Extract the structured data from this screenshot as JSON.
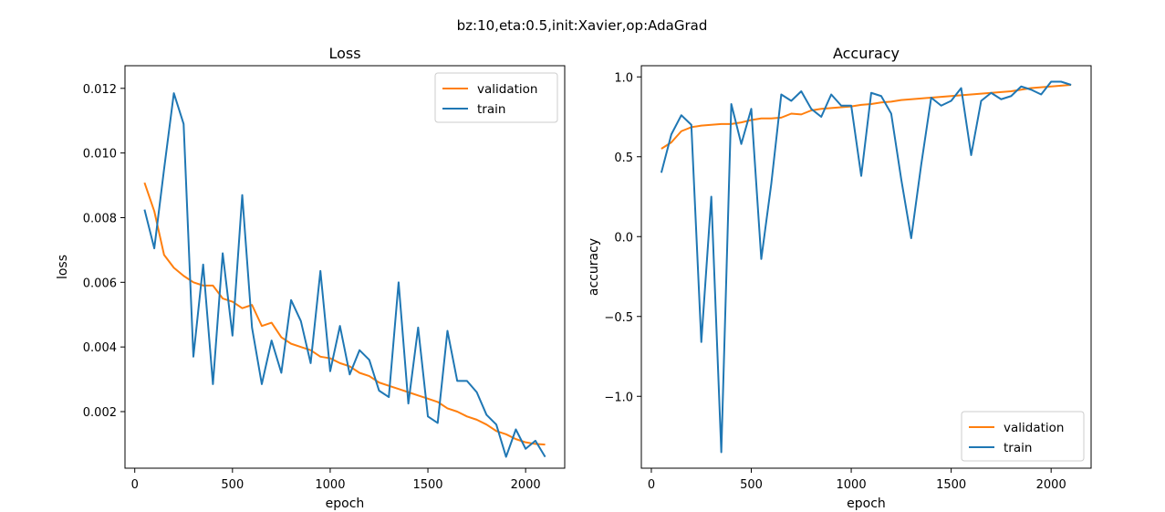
{
  "figure": {
    "suptitle": "bz:10,eta:0.5,init:Xavier,op:AdaGrad"
  },
  "colors": {
    "validation": "#ff7f0e",
    "train": "#1f77b4"
  },
  "chart_data": [
    {
      "type": "line",
      "title": "Loss",
      "xlabel": "epoch",
      "ylabel": "loss",
      "xlim": [
        -50,
        2200
      ],
      "ylim": [
        0.00025,
        0.0127
      ],
      "xticks": [
        0,
        500,
        1000,
        1500,
        2000
      ],
      "xtick_labels": [
        "0",
        "500",
        "1000",
        "1500",
        "2000"
      ],
      "yticks": [
        0.002,
        0.004,
        0.006,
        0.008,
        0.01,
        0.012
      ],
      "ytick_labels": [
        "0.002",
        "0.004",
        "0.006",
        "0.008",
        "0.010",
        "0.012"
      ],
      "legend": {
        "position": "upper right",
        "entries": [
          "validation",
          "train"
        ]
      },
      "grid": false,
      "x": [
        50,
        100,
        150,
        200,
        250,
        300,
        350,
        400,
        450,
        500,
        550,
        600,
        650,
        700,
        750,
        800,
        850,
        900,
        950,
        1000,
        1050,
        1100,
        1150,
        1200,
        1250,
        1300,
        1350,
        1400,
        1450,
        1500,
        1550,
        1600,
        1650,
        1700,
        1750,
        1800,
        1850,
        1900,
        1950,
        2000,
        2050,
        2100
      ],
      "series": [
        {
          "name": "validation",
          "values": [
            0.00908,
            0.0082,
            0.00685,
            0.00645,
            0.0062,
            0.006,
            0.0059,
            0.0059,
            0.0055,
            0.0054,
            0.0052,
            0.0053,
            0.00465,
            0.00475,
            0.0043,
            0.0041,
            0.004,
            0.0039,
            0.0037,
            0.00365,
            0.0035,
            0.0034,
            0.0032,
            0.0031,
            0.0029,
            0.0028,
            0.0027,
            0.0026,
            0.0025,
            0.0024,
            0.0023,
            0.0021,
            0.002,
            0.00185,
            0.00175,
            0.0016,
            0.0014,
            0.0013,
            0.00115,
            0.00105,
            0.001,
            0.00098
          ]
        },
        {
          "name": "train",
          "values": [
            0.00825,
            0.00705,
            0.0095,
            0.01185,
            0.0109,
            0.0037,
            0.00655,
            0.00285,
            0.0069,
            0.00435,
            0.0087,
            0.0046,
            0.00285,
            0.0042,
            0.0032,
            0.00545,
            0.0048,
            0.0035,
            0.00635,
            0.00325,
            0.00465,
            0.00315,
            0.0039,
            0.0036,
            0.00265,
            0.00245,
            0.006,
            0.00225,
            0.0046,
            0.00185,
            0.00165,
            0.0045,
            0.00295,
            0.00295,
            0.0026,
            0.0019,
            0.0016,
            0.0006,
            0.00145,
            0.00085,
            0.0011,
            0.0006
          ]
        }
      ]
    },
    {
      "type": "line",
      "title": "Accuracy",
      "xlabel": "epoch",
      "ylabel": "accuracy",
      "xlim": [
        -50,
        2200
      ],
      "ylim": [
        -1.45,
        1.07
      ],
      "xticks": [
        0,
        500,
        1000,
        1500,
        2000
      ],
      "xtick_labels": [
        "0",
        "500",
        "1000",
        "1500",
        "2000"
      ],
      "yticks": [
        -1.0,
        -0.5,
        0.0,
        0.5,
        1.0
      ],
      "ytick_labels": [
        "−1.0",
        "−0.5",
        "0.0",
        "0.5",
        "1.0"
      ],
      "legend": {
        "position": "lower right",
        "entries": [
          "validation",
          "train"
        ]
      },
      "grid": false,
      "x": [
        50,
        100,
        150,
        200,
        250,
        300,
        350,
        400,
        450,
        500,
        550,
        600,
        650,
        700,
        750,
        800,
        850,
        900,
        950,
        1000,
        1050,
        1100,
        1150,
        1200,
        1250,
        1300,
        1350,
        1400,
        1450,
        1500,
        1550,
        1600,
        1650,
        1700,
        1750,
        1800,
        1850,
        1900,
        1950,
        2000,
        2050,
        2100
      ],
      "series": [
        {
          "name": "validation",
          "values": [
            0.55,
            0.59,
            0.66,
            0.685,
            0.695,
            0.7,
            0.705,
            0.705,
            0.715,
            0.73,
            0.74,
            0.74,
            0.745,
            0.77,
            0.765,
            0.79,
            0.8,
            0.805,
            0.81,
            0.815,
            0.825,
            0.83,
            0.84,
            0.845,
            0.855,
            0.86,
            0.865,
            0.87,
            0.875,
            0.88,
            0.885,
            0.89,
            0.895,
            0.9,
            0.905,
            0.91,
            0.92,
            0.93,
            0.935,
            0.94,
            0.945,
            0.95
          ]
        },
        {
          "name": "train",
          "values": [
            0.4,
            0.64,
            0.76,
            0.7,
            -0.66,
            0.25,
            -1.35,
            0.83,
            0.58,
            0.8,
            -0.14,
            0.33,
            0.89,
            0.85,
            0.91,
            0.8,
            0.75,
            0.89,
            0.82,
            0.82,
            0.38,
            0.9,
            0.88,
            0.77,
            0.36,
            -0.01,
            0.45,
            0.87,
            0.82,
            0.85,
            0.93,
            0.51,
            0.85,
            0.9,
            0.86,
            0.88,
            0.94,
            0.92,
            0.89,
            0.97,
            0.97,
            0.95
          ]
        }
      ]
    }
  ]
}
